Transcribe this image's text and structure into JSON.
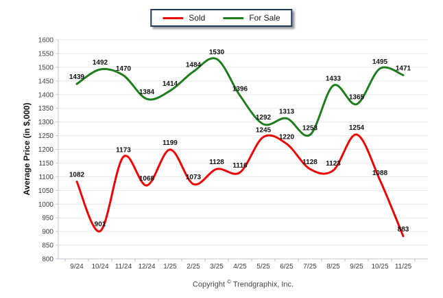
{
  "legend": {
    "border_color": "#1f3a5f",
    "items": [
      {
        "label": "Sold",
        "color": "#f00000"
      },
      {
        "label": "For Sale",
        "color": "#1d7d1d"
      }
    ]
  },
  "chart_data": {
    "type": "line",
    "smooth": true,
    "data_labels": true,
    "grid": true,
    "legend_position": "top-center",
    "categories": [
      "9/24",
      "10/24",
      "11/24",
      "12/24",
      "1/25",
      "2/25",
      "3/25",
      "4/25",
      "5/25",
      "6/25",
      "7/25",
      "8/25",
      "9/25",
      "10/25",
      "11/25"
    ],
    "series": [
      {
        "name": "Sold",
        "color": "#f00000",
        "values": [
          1082,
          901,
          1173,
          1068,
          1199,
          1073,
          1128,
          1116,
          1245,
          1220,
          1128,
          1123,
          1254,
          1088,
          883
        ]
      },
      {
        "name": "For Sale",
        "color": "#1d7d1d",
        "values": [
          1439,
          1492,
          1470,
          1384,
          1414,
          1484,
          1530,
          1396,
          1292,
          1313,
          1253,
          1433,
          1365,
          1495,
          1471
        ]
      }
    ],
    "xlabel": "",
    "ylabel": "Average Price (in $,000)",
    "ylim": [
      800,
      1600
    ],
    "ytick_step": 50
  },
  "axis_style": {
    "grid_color": "#e8e8e8",
    "axis_color": "#c9c9c9",
    "y_tick_color": "#a9cef2",
    "x_tick_color": "#c0c0c0",
    "tick_label_color": "#404040",
    "data_label_color": "#111111"
  },
  "footer": {
    "copyright_prefix": "Copyright",
    "copyright_symbol": "©",
    "copyright_suffix": "Trendgraphix, Inc."
  }
}
